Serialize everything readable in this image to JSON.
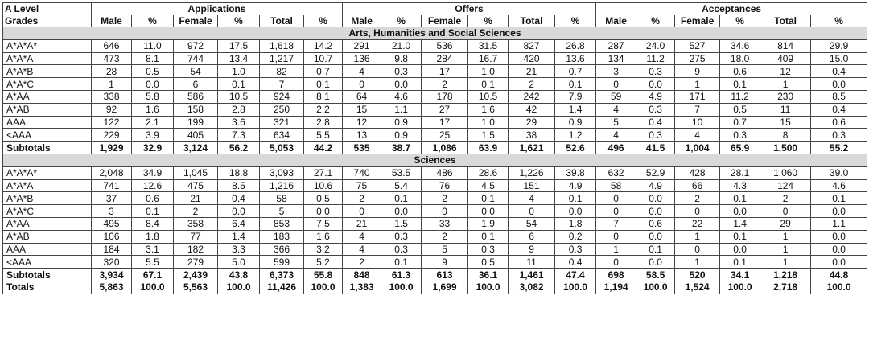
{
  "header": {
    "grade_line1": "A Level",
    "grade_line2": "Grades",
    "groups": [
      "Applications",
      "Offers",
      "Acceptances"
    ],
    "subcolumns": [
      "Male",
      "%",
      "Female",
      "%",
      "Total",
      "%"
    ]
  },
  "sections": [
    {
      "title": "Arts, Humanities and Social Sciences",
      "rows": [
        {
          "grade": "A*A*A*",
          "cells": [
            "646",
            "11.0",
            "972",
            "17.5",
            "1,618",
            "14.2",
            "291",
            "21.0",
            "536",
            "31.5",
            "827",
            "26.8",
            "287",
            "24.0",
            "527",
            "34.6",
            "814",
            "29.9"
          ]
        },
        {
          "grade": "A*A*A",
          "cells": [
            "473",
            "8.1",
            "744",
            "13.4",
            "1,217",
            "10.7",
            "136",
            "9.8",
            "284",
            "16.7",
            "420",
            "13.6",
            "134",
            "11.2",
            "275",
            "18.0",
            "409",
            "15.0"
          ]
        },
        {
          "grade": "A*A*B",
          "cells": [
            "28",
            "0.5",
            "54",
            "1.0",
            "82",
            "0.7",
            "4",
            "0.3",
            "17",
            "1.0",
            "21",
            "0.7",
            "3",
            "0.3",
            "9",
            "0.6",
            "12",
            "0.4"
          ]
        },
        {
          "grade": "A*A*C",
          "cells": [
            "1",
            "0.0",
            "6",
            "0.1",
            "7",
            "0.1",
            "0",
            "0.0",
            "2",
            "0.1",
            "2",
            "0.1",
            "0",
            "0.0",
            "1",
            "0.1",
            "1",
            "0.0"
          ]
        },
        {
          "grade": "A*AA",
          "cells": [
            "338",
            "5.8",
            "586",
            "10.5",
            "924",
            "8.1",
            "64",
            "4.6",
            "178",
            "10.5",
            "242",
            "7.9",
            "59",
            "4.9",
            "171",
            "11.2",
            "230",
            "8.5"
          ]
        },
        {
          "grade": "A*AB",
          "cells": [
            "92",
            "1.6",
            "158",
            "2.8",
            "250",
            "2.2",
            "15",
            "1.1",
            "27",
            "1.6",
            "42",
            "1.4",
            "4",
            "0.3",
            "7",
            "0.5",
            "11",
            "0.4"
          ]
        },
        {
          "grade": "AAA",
          "cells": [
            "122",
            "2.1",
            "199",
            "3.6",
            "321",
            "2.8",
            "12",
            "0.9",
            "17",
            "1.0",
            "29",
            "0.9",
            "5",
            "0.4",
            "10",
            "0.7",
            "15",
            "0.6"
          ]
        },
        {
          "grade": "<AAA",
          "cells": [
            "229",
            "3.9",
            "405",
            "7.3",
            "634",
            "5.5",
            "13",
            "0.9",
            "25",
            "1.5",
            "38",
            "1.2",
            "4",
            "0.3",
            "4",
            "0.3",
            "8",
            "0.3"
          ]
        }
      ],
      "subtotal": {
        "grade": "Subtotals",
        "cells": [
          "1,929",
          "32.9",
          "3,124",
          "56.2",
          "5,053",
          "44.2",
          "535",
          "38.7",
          "1,086",
          "63.9",
          "1,621",
          "52.6",
          "496",
          "41.5",
          "1,004",
          "65.9",
          "1,500",
          "55.2"
        ]
      }
    },
    {
      "title": "Sciences",
      "rows": [
        {
          "grade": "A*A*A*",
          "cells": [
            "2,048",
            "34.9",
            "1,045",
            "18.8",
            "3,093",
            "27.1",
            "740",
            "53.5",
            "486",
            "28.6",
            "1,226",
            "39.8",
            "632",
            "52.9",
            "428",
            "28.1",
            "1,060",
            "39.0"
          ]
        },
        {
          "grade": "A*A*A",
          "cells": [
            "741",
            "12.6",
            "475",
            "8.5",
            "1,216",
            "10.6",
            "75",
            "5.4",
            "76",
            "4.5",
            "151",
            "4.9",
            "58",
            "4.9",
            "66",
            "4.3",
            "124",
            "4.6"
          ]
        },
        {
          "grade": "A*A*B",
          "cells": [
            "37",
            "0.6",
            "21",
            "0.4",
            "58",
            "0.5",
            "2",
            "0.1",
            "2",
            "0.1",
            "4",
            "0.1",
            "0",
            "0.0",
            "2",
            "0.1",
            "2",
            "0.1"
          ]
        },
        {
          "grade": "A*A*C",
          "cells": [
            "3",
            "0.1",
            "2",
            "0.0",
            "5",
            "0.0",
            "0",
            "0.0",
            "0",
            "0.0",
            "0",
            "0.0",
            "0",
            "0.0",
            "0",
            "0.0",
            "0",
            "0.0"
          ]
        },
        {
          "grade": "A*AA",
          "cells": [
            "495",
            "8.4",
            "358",
            "6.4",
            "853",
            "7.5",
            "21",
            "1.5",
            "33",
            "1.9",
            "54",
            "1.8",
            "7",
            "0.6",
            "22",
            "1.4",
            "29",
            "1.1"
          ]
        },
        {
          "grade": "A*AB",
          "cells": [
            "106",
            "1.8",
            "77",
            "1.4",
            "183",
            "1.6",
            "4",
            "0.3",
            "2",
            "0.1",
            "6",
            "0.2",
            "0",
            "0.0",
            "1",
            "0.1",
            "1",
            "0.0"
          ]
        },
        {
          "grade": "AAA",
          "cells": [
            "184",
            "3.1",
            "182",
            "3.3",
            "366",
            "3.2",
            "4",
            "0.3",
            "5",
            "0.3",
            "9",
            "0.3",
            "1",
            "0.1",
            "0",
            "0.0",
            "1",
            "0.0"
          ]
        },
        {
          "grade": "<AAA",
          "cells": [
            "320",
            "5.5",
            "279",
            "5.0",
            "599",
            "5.2",
            "2",
            "0.1",
            "9",
            "0.5",
            "11",
            "0.4",
            "0",
            "0.0",
            "1",
            "0.1",
            "1",
            "0.0"
          ]
        }
      ],
      "subtotal": {
        "grade": "Subtotals",
        "cells": [
          "3,934",
          "67.1",
          "2,439",
          "43.8",
          "6,373",
          "55.8",
          "848",
          "61.3",
          "613",
          "36.1",
          "1,461",
          "47.4",
          "698",
          "58.5",
          "520",
          "34.1",
          "1,218",
          "44.8"
        ]
      }
    }
  ],
  "totals": {
    "grade": "Totals",
    "cells": [
      "5,863",
      "100.0",
      "5,563",
      "100.0",
      "11,426",
      "100.0",
      "1,383",
      "100.0",
      "1,699",
      "100.0",
      "3,082",
      "100.0",
      "1,194",
      "100.0",
      "1,524",
      "100.0",
      "2,718",
      "100.0"
    ]
  },
  "colors": {
    "section_band": "#d9d9d9",
    "border": "#444444"
  }
}
